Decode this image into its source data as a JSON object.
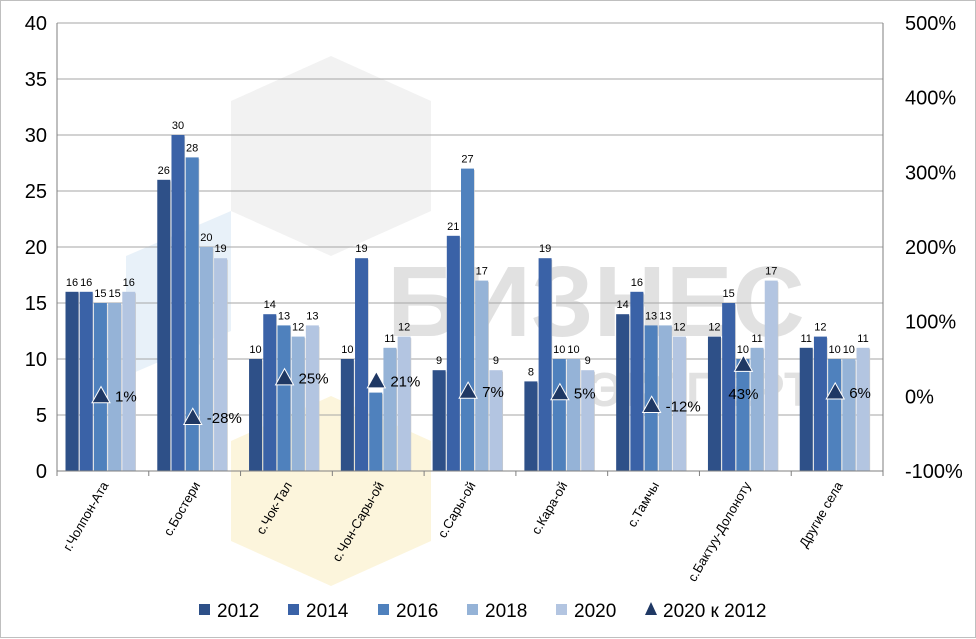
{
  "chart_data": {
    "type": "bar",
    "categories": [
      "г.Чолпон-Ата",
      "с.Бостери",
      "с.Чок-Тал",
      "с.Чон-Сары-ой",
      "с.Сары-ой",
      "с.Кара-ой",
      "с.Тамчы",
      "с.Бактуу-Долоноту",
      "Другие села"
    ],
    "series": [
      {
        "name": "2012",
        "color": "#2e5088",
        "values": [
          16,
          26,
          10,
          10,
          9,
          8,
          14,
          12,
          11
        ]
      },
      {
        "name": "2014",
        "color": "#3a62a7",
        "values": [
          16,
          30,
          14,
          19,
          21,
          19,
          16,
          15,
          12
        ]
      },
      {
        "name": "2016",
        "color": "#4f81bd",
        "values": [
          15,
          28,
          13,
          7,
          27,
          10,
          13,
          10,
          10
        ]
      },
      {
        "name": "2018",
        "color": "#95b3d7",
        "values": [
          15,
          20,
          12,
          11,
          17,
          10,
          13,
          11,
          10
        ]
      },
      {
        "name": "2020",
        "color": "#b3c5e1",
        "values": [
          16,
          19,
          13,
          12,
          9,
          9,
          12,
          17,
          11
        ]
      }
    ],
    "line_series": {
      "name": "2020 к 2012",
      "marker": "triangle",
      "color": "#1f3864",
      "values": [
        1,
        -28,
        25,
        21,
        7,
        5,
        -12,
        43,
        6
      ],
      "labels": [
        "1%",
        "-28%",
        "25%",
        "21%",
        "7%",
        "5%",
        "-12%",
        "43%",
        "6%"
      ]
    },
    "y_left": {
      "min": 0,
      "max": 40,
      "step": 5,
      "ticks": [
        "0",
        "5",
        "10",
        "15",
        "20",
        "25",
        "30",
        "35",
        "40"
      ]
    },
    "y_right": {
      "min": -100,
      "max": 500,
      "step": 100,
      "ticks": [
        "-100%",
        "0%",
        "100%",
        "200%",
        "300%",
        "400%",
        "500%"
      ]
    },
    "grid": true,
    "legend": "bottom",
    "watermark": "БИЗНЕС ЭКСПЕРТ"
  }
}
